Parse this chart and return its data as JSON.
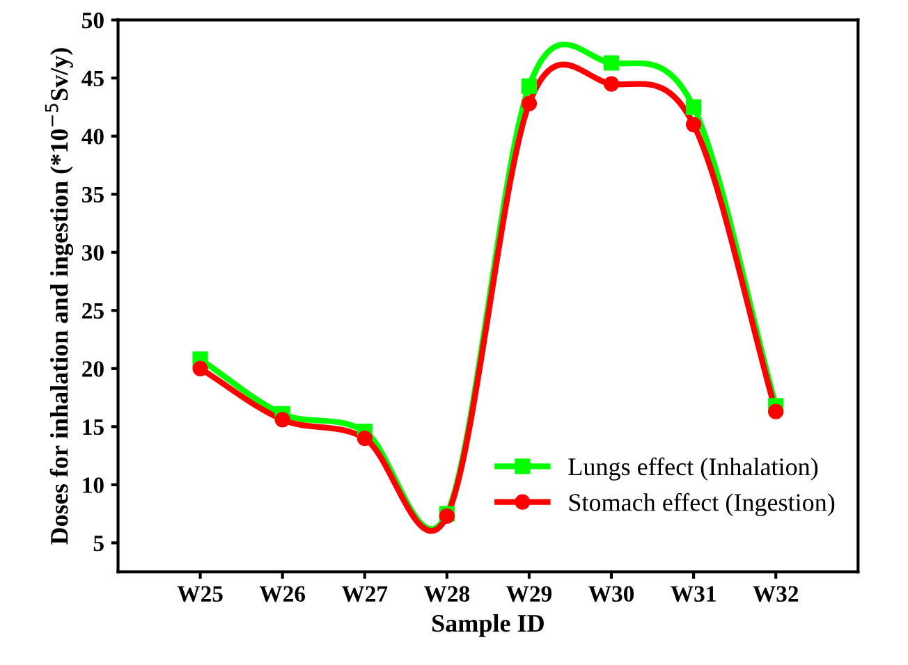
{
  "chart_data": {
    "type": "line",
    "xlabel": "Sample ID",
    "ylabel": "Doses for inhalation and ingestion (*10$^{−5}$Sv/y)",
    "categories": [
      "W25",
      "W26",
      "W27",
      "W28",
      "W29",
      "W30",
      "W31",
      "W32"
    ],
    "series": [
      {
        "name": "Lungs effect (Inhalation)",
        "color": "#00ff00",
        "marker": "square",
        "values": [
          20.8,
          16.1,
          14.6,
          7.5,
          44.3,
          46.3,
          42.5,
          16.8
        ]
      },
      {
        "name": "Stomach effect (Ingestion)",
        "color": "#ff0000",
        "marker": "circle",
        "values": [
          20.0,
          15.6,
          14.0,
          7.3,
          42.8,
          44.5,
          41.0,
          16.3
        ]
      }
    ],
    "ylim": [
      2.5,
      50
    ],
    "yticks": [
      5,
      10,
      15,
      20,
      25,
      30,
      35,
      40,
      45,
      50
    ],
    "grid": false,
    "legend": "bottom right",
    "line_style": "solid"
  }
}
